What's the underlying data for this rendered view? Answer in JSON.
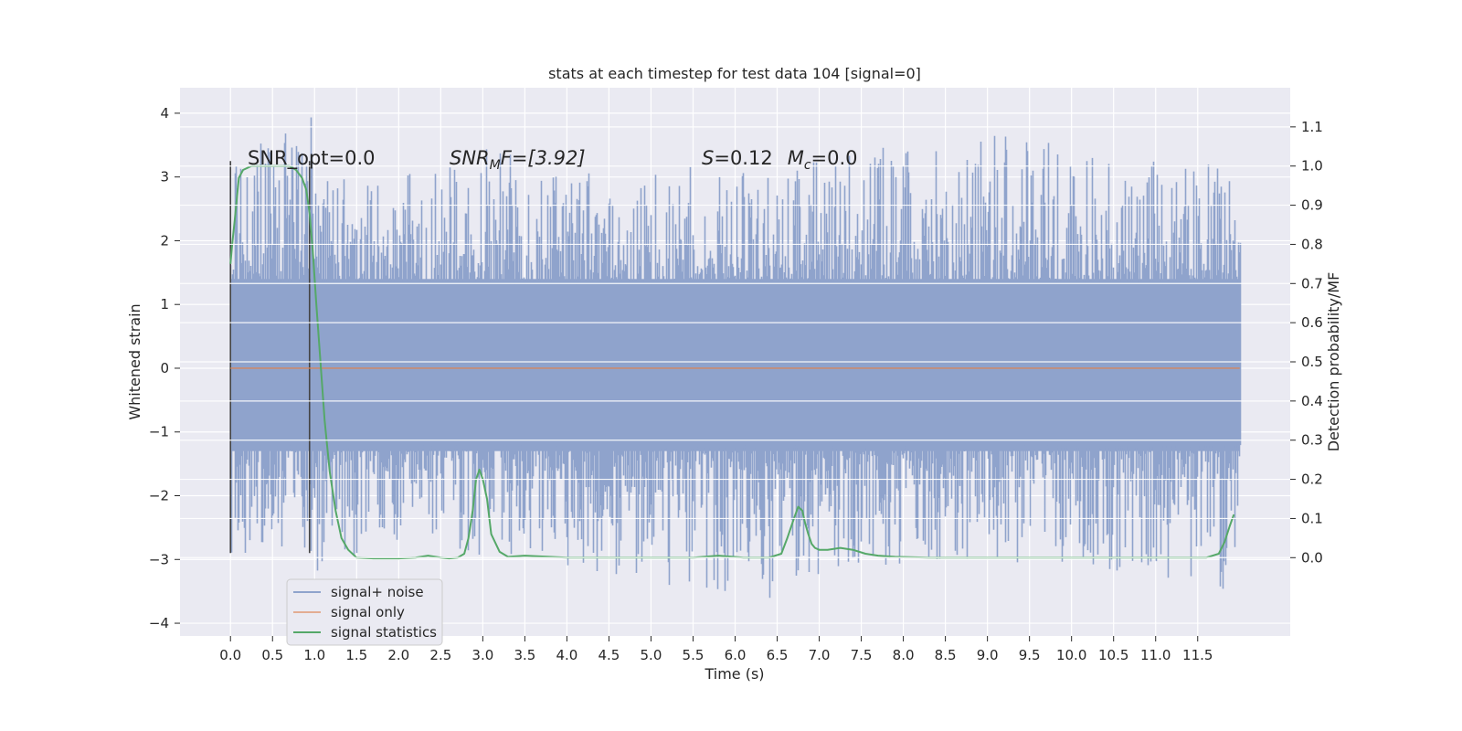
{
  "chart_data": {
    "type": "line",
    "title": "stats at each timestep for test data 104 [signal=0]",
    "xlabel": "Time (s)",
    "ylabel": "Whitened strain",
    "y2label": "Detection probability/MF",
    "xlim": [
      -0.6,
      12.6
    ],
    "ylim": [
      -4.2,
      4.4
    ],
    "y2lim": [
      -0.2,
      1.2
    ],
    "xticks": [
      "0.0",
      "0.5",
      "1.0",
      "1.5",
      "2.0",
      "2.5",
      "3.0",
      "3.5",
      "4.0",
      "4.5",
      "5.0",
      "5.5",
      "6.0",
      "6.5",
      "7.0",
      "7.5",
      "8.0",
      "8.5",
      "9.0",
      "9.5",
      "10.0",
      "10.5",
      "11.0",
      "11.5"
    ],
    "yticks": [
      "4",
      "3",
      "2",
      "1",
      "0",
      "−1",
      "−2",
      "−3",
      "−4"
    ],
    "y2ticks": [
      "1.1",
      "1.0",
      "0.9",
      "0.8",
      "0.7",
      "0.6",
      "0.5",
      "0.4",
      "0.3",
      "0.2",
      "0.1",
      "0.0"
    ],
    "grid": true,
    "legend_position": "lower-left",
    "annotations": {
      "snr_opt": "SNR_opt=0.0",
      "snr_mf_main": "SNR",
      "snr_mf_sub": "M",
      "snr_mf_tail": "F=[3.92]",
      "s_main": "S",
      "s_tail": "=0.12",
      "mc_main": "M",
      "mc_sub": "c",
      "mc_tail": "=0.0"
    },
    "markers": [
      0.0,
      0.94
    ],
    "series": [
      {
        "name": "signal+ noise",
        "color": "#8fa3cc",
        "description_points": {
          "x": [
            0.0,
            0.95,
            1.0,
            2.5,
            2.9,
            3.05,
            3.5,
            6.0,
            6.5,
            6.7,
            9.0,
            10.4,
            11.9,
            12.0
          ],
          "y_upper": [
            3.2,
            4.1,
            3.0,
            3.3,
            3.0,
            3.9,
            3.0,
            3.2,
            3.1,
            3.3,
            3.8,
            3.3,
            3.2,
            2.6
          ],
          "y_lower": [
            -2.9,
            -2.9,
            -3.2,
            -2.7,
            -3.4,
            -3.0,
            -3.0,
            -3.6,
            -3.7,
            -3.3,
            -3.0,
            -3.2,
            -3.6,
            -2.1
          ],
          "dense_band": [
            -1.3,
            1.4
          ]
        }
      },
      {
        "name": "signal only",
        "color": "#dd8452",
        "x": [
          0.0,
          12.0
        ],
        "y": [
          0.0,
          0.0
        ]
      },
      {
        "name": "signal statistics",
        "color": "#55a868",
        "axis": "right",
        "x": [
          0.0,
          0.02,
          0.05,
          0.1,
          0.15,
          0.25,
          0.35,
          0.5,
          0.6,
          0.7,
          0.78,
          0.85,
          0.9,
          0.94,
          0.98,
          1.02,
          1.07,
          1.12,
          1.18,
          1.25,
          1.32,
          1.4,
          1.5,
          1.7,
          2.0,
          2.2,
          2.35,
          2.5,
          2.6,
          2.7,
          2.78,
          2.83,
          2.88,
          2.92,
          2.96,
          3.0,
          3.05,
          3.1,
          3.2,
          3.3,
          3.5,
          4.0,
          5.0,
          5.5,
          5.8,
          6.1,
          6.4,
          6.55,
          6.62,
          6.7,
          6.75,
          6.8,
          6.83,
          6.87,
          6.91,
          6.95,
          7.0,
          7.1,
          7.25,
          7.4,
          7.55,
          7.7,
          7.9,
          8.3,
          9.0,
          10.0,
          11.0,
          11.6,
          11.75,
          11.82,
          11.88,
          11.93
        ],
        "y": [
          0.75,
          0.8,
          0.86,
          0.97,
          0.99,
          1.0,
          1.0,
          1.0,
          1.0,
          1.0,
          0.99,
          0.97,
          0.94,
          0.88,
          0.78,
          0.65,
          0.5,
          0.35,
          0.22,
          0.12,
          0.05,
          0.02,
          0.0,
          -0.002,
          -0.002,
          0.0,
          0.005,
          0.0,
          -0.002,
          0.0,
          0.01,
          0.05,
          0.12,
          0.2,
          0.225,
          0.2,
          0.15,
          0.06,
          0.015,
          0.002,
          0.005,
          0.0,
          0.0,
          0.0,
          0.005,
          0.0,
          0.0,
          0.01,
          0.05,
          0.1,
          0.13,
          0.12,
          0.09,
          0.06,
          0.035,
          0.025,
          0.02,
          0.02,
          0.025,
          0.02,
          0.01,
          0.005,
          0.002,
          0.0,
          0.0,
          0.0,
          0.0,
          0.0,
          0.01,
          0.04,
          0.08,
          0.11
        ]
      }
    ]
  }
}
